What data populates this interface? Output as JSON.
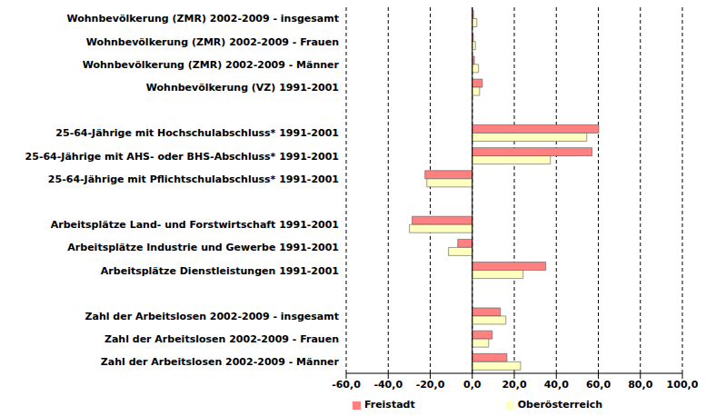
{
  "chart_data": {
    "type": "bar",
    "orientation": "horizontal",
    "grid": true,
    "legend": "bottom",
    "categories": [
      "Wohnbevölkerung (ZMR) 2002-2009 - insgesamt",
      "Wohnbevölkerung (ZMR) 2002-2009 - Frauen",
      "Wohnbevölkerung (ZMR) 2002-2009 - Männer",
      "Wohnbevölkerung (VZ) 1991-2001",
      null,
      "25-64-Jährige mit Hochschulabschluss* 1991-2001",
      "25-64-Jährige mit AHS- oder BHS-Abschluss* 1991-2001",
      "25-64-Jährige mit Pflichtschulabschluss* 1991-2001",
      null,
      "Arbeitsplätze Land- und Forstwirtschaft 1991-2001",
      "Arbeitsplätze Industrie und Gewerbe 1991-2001",
      "Arbeitsplätze Dienstleistungen 1991-2001",
      null,
      "Zahl der Arbeitslosen 2002-2009 - insgesamt",
      "Zahl der Arbeitslosen 2002-2009 - Frauen",
      "Zahl der Arbeitslosen 2002-2009 - Männer"
    ],
    "series": [
      {
        "name": "Freistadt",
        "color": "#ff8080",
        "values": [
          0.6,
          0.5,
          1.0,
          4.8,
          null,
          60.2,
          57.0,
          -22.5,
          null,
          -28.6,
          -6.9,
          35.0,
          null,
          13.4,
          9.5,
          16.5
        ]
      },
      {
        "name": "Oberösterreich",
        "color": "#ffffc0",
        "values": [
          2.2,
          1.5,
          3.0,
          3.5,
          null,
          54.5,
          37.2,
          -21.6,
          null,
          -29.9,
          -11.3,
          24.2,
          null,
          16.0,
          7.8,
          23.0
        ]
      }
    ],
    "xlim": [
      -60,
      100
    ],
    "xticks": [
      {
        "value": -60,
        "label": "-60,0"
      },
      {
        "value": -40,
        "label": "-40,0"
      },
      {
        "value": -20,
        "label": "-20,0"
      },
      {
        "value": 0,
        "label": "0,0"
      },
      {
        "value": 20,
        "label": "20,0"
      },
      {
        "value": 40,
        "label": "40,0"
      },
      {
        "value": 60,
        "label": "60,0"
      },
      {
        "value": 80,
        "label": "80,0"
      },
      {
        "value": 100,
        "label": "100,0"
      }
    ]
  }
}
